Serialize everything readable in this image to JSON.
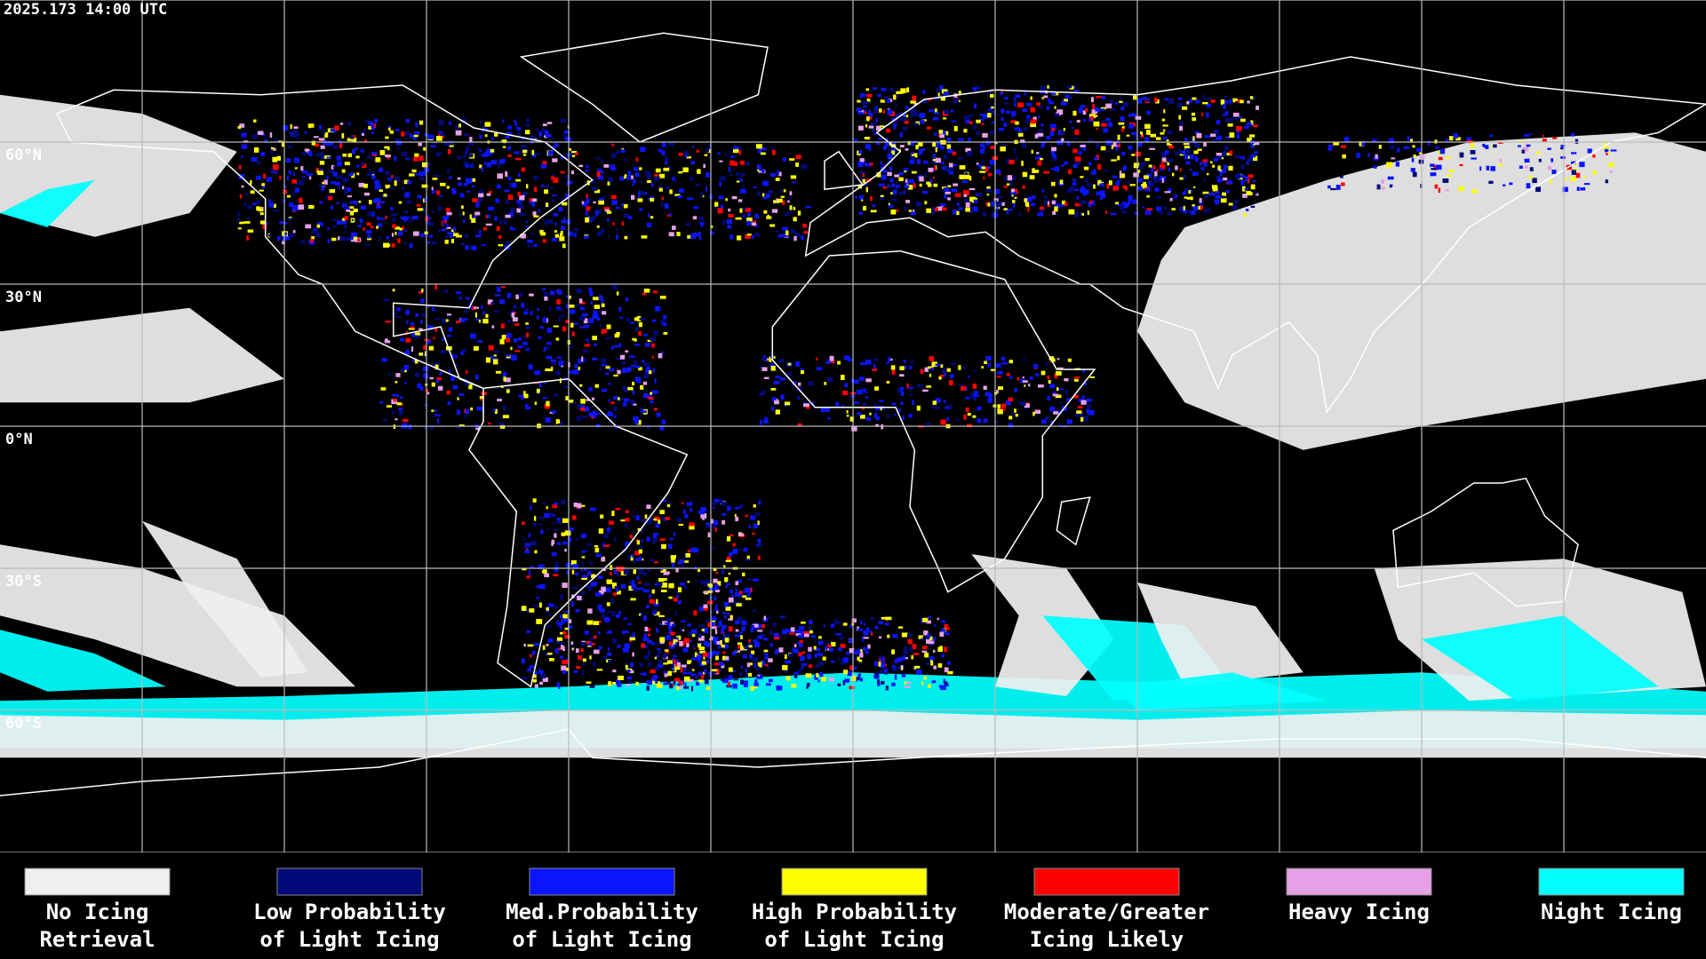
{
  "header": {
    "timestamp": "2025.173 14:00 UTC"
  },
  "map": {
    "latitude_labels": [
      "60°N",
      "30°N",
      "0°N",
      "30°S",
      "60°S"
    ]
  },
  "legend": {
    "items": [
      {
        "lines": [
          "No Icing",
          "Retrieval"
        ],
        "color": "#efefef"
      },
      {
        "lines": [
          "Low Probability",
          "of Light Icing"
        ],
        "color": "#000a78"
      },
      {
        "lines": [
          "Med.Probability",
          "of Light Icing"
        ],
        "color": "#0a14ff"
      },
      {
        "lines": [
          "High Probability",
          "of Light Icing"
        ],
        "color": "#ffff00"
      },
      {
        "lines": [
          "Moderate/Greater",
          "Icing Likely"
        ],
        "color": "#ff0000"
      },
      {
        "lines": [
          "Heavy Icing"
        ],
        "color": "#e6a0e6"
      },
      {
        "lines": [
          "Night Icing"
        ],
        "color": "#00ffff"
      }
    ]
  }
}
